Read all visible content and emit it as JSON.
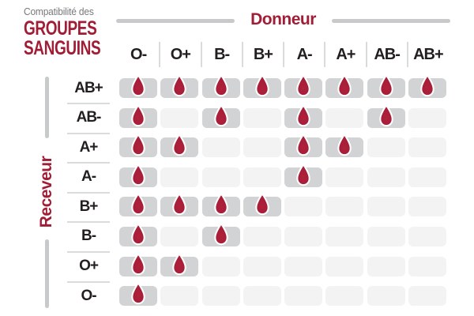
{
  "title": {
    "kicker": "Compatibilité des",
    "line1": "GROUPES",
    "line2": "SANGUINS"
  },
  "axes": {
    "donor": "Donneur",
    "receiver": "Receveur"
  },
  "icons": {
    "cell_marker": "blood-drop-icon"
  },
  "colors": {
    "accent_red": "#A11D35",
    "drop_fill": "#A11D35",
    "drop_outline": "#FFFFFF",
    "cell_compatible_bg": "#D2D3D4",
    "cell_incompatible_bg": "#F3F3F4",
    "divider": "#DADBDC",
    "axis_line": "#C7C9CB",
    "header_text": "#231F20",
    "kicker_text": "#77787B"
  },
  "chart_data": {
    "type": "heatmap",
    "title": "Compatibilité des GROUPES SANGUINS",
    "x_axis_label": "Donneur",
    "y_axis_label": "Receveur",
    "columns": [
      "O-",
      "O+",
      "B-",
      "B+",
      "A-",
      "A+",
      "AB-",
      "AB+"
    ],
    "rows": [
      "AB+",
      "AB-",
      "A+",
      "A-",
      "B+",
      "B-",
      "O+",
      "O-"
    ],
    "matrix": [
      [
        1,
        1,
        1,
        1,
        1,
        1,
        1,
        1
      ],
      [
        1,
        0,
        1,
        0,
        1,
        0,
        1,
        0
      ],
      [
        1,
        1,
        0,
        0,
        1,
        1,
        0,
        0
      ],
      [
        1,
        0,
        0,
        0,
        1,
        0,
        0,
        0
      ],
      [
        1,
        1,
        1,
        1,
        0,
        0,
        0,
        0
      ],
      [
        1,
        0,
        1,
        0,
        0,
        0,
        0,
        0
      ],
      [
        1,
        1,
        0,
        0,
        0,
        0,
        0,
        0
      ],
      [
        1,
        0,
        0,
        0,
        0,
        0,
        0,
        0
      ]
    ],
    "marker": "blood-drop = compatible",
    "legend_position": "none",
    "grid": false
  }
}
